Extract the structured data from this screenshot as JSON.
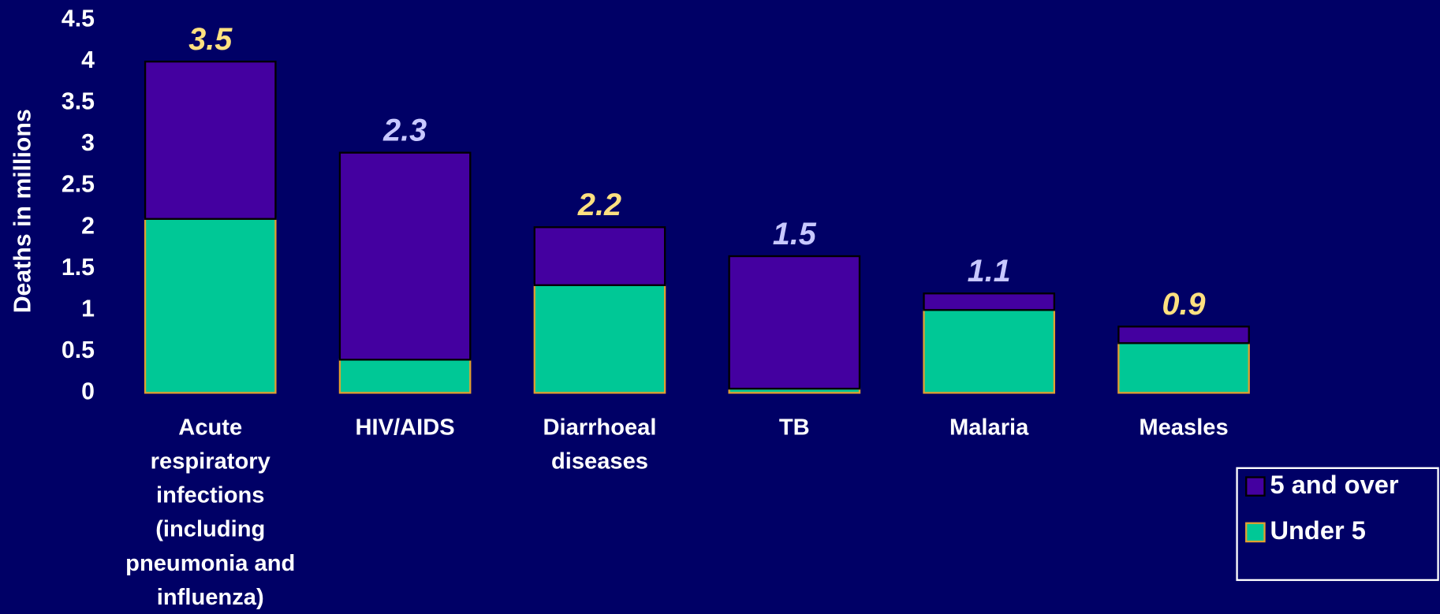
{
  "chart_data": {
    "type": "stacked_bar",
    "y_label": "Deaths in millions",
    "categories": [
      [
        "Acute",
        "respiratory",
        "infections",
        "(including",
        "pneumonia and",
        "influenza)"
      ],
      [
        "HIV/AIDS"
      ],
      [
        "Diarrhoeal",
        "diseases"
      ],
      [
        "TB"
      ],
      [
        "Malaria"
      ],
      [
        "Measles"
      ]
    ],
    "series": [
      {
        "name": "Under 5",
        "color": "#00c896",
        "edge": "#e0a030",
        "values": [
          2.1,
          0.4,
          1.3,
          0.05,
          1.0,
          0.6
        ]
      },
      {
        "name": "5 and over",
        "color": "#4400a0",
        "edge": "#000000",
        "values": [
          1.9,
          2.5,
          0.7,
          1.6,
          0.2,
          0.2
        ]
      }
    ],
    "annotations": [
      "3.5",
      "2.3",
      "2.2",
      "1.5",
      "1.1",
      "0.9"
    ],
    "annotation_colors": [
      "#ffe080",
      "#c8c8ff",
      "#ffe080",
      "#c8c8ff",
      "#c8c8ff",
      "#ffe080"
    ],
    "ylim": [
      0,
      4.5
    ],
    "yticks": [
      0,
      0.5,
      1,
      1.5,
      2,
      2.5,
      3,
      3.5,
      4,
      4.5
    ],
    "legend": "bottom-right"
  }
}
